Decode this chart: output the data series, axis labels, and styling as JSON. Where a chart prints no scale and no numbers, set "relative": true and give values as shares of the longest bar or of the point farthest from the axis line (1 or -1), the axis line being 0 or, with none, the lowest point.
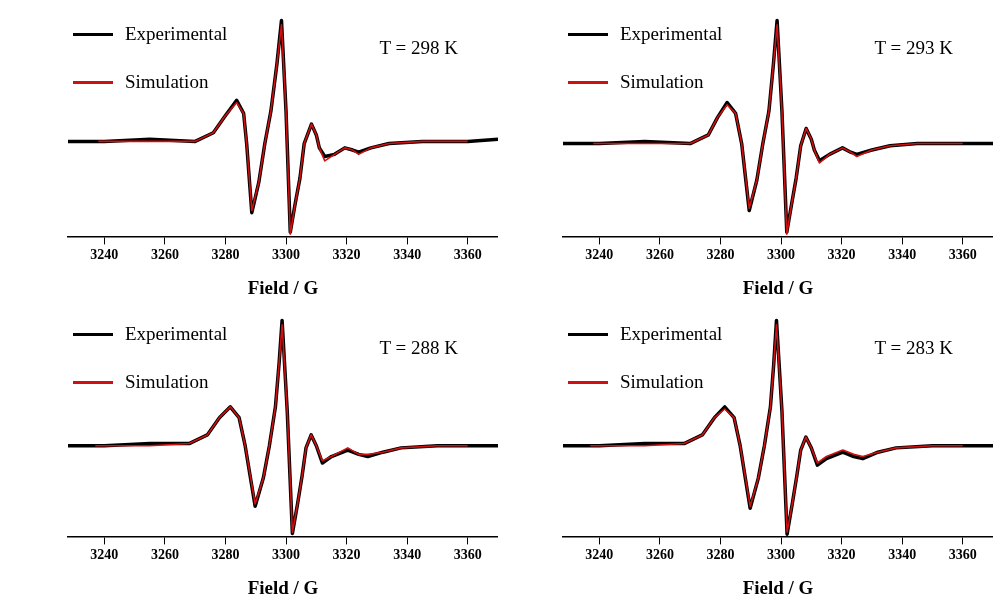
{
  "chart_data": [
    {
      "type": "line",
      "relative": true,
      "xlabel": "Field / G",
      "xlim": [
        3228,
        3370
      ],
      "xticks": [
        3240,
        3260,
        3280,
        3300,
        3320,
        3340,
        3360
      ],
      "legend": "top left",
      "grid": false,
      "annotations": [
        "T = 298 K"
      ],
      "series": [
        {
          "name": "Experimental",
          "color": "#000000",
          "x": [
            3228,
            3240,
            3255,
            3270,
            3276,
            3280,
            3283.7,
            3286,
            3287,
            3288.7,
            3291,
            3293,
            3295,
            3297,
            3298.5,
            3300,
            3301.4,
            3303,
            3304.6,
            3306,
            3308.4,
            3310,
            3311,
            3312.8,
            3316,
            3319.4,
            3322,
            3324,
            3328,
            3334,
            3345,
            3360,
            3370
          ],
          "values": [
            0.44,
            0.44,
            0.45,
            0.44,
            0.48,
            0.56,
            0.63,
            0.57,
            0.43,
            0.11,
            0.25,
            0.43,
            0.58,
            0.8,
            1.0,
            0.58,
            0.02,
            0.15,
            0.27,
            0.43,
            0.52,
            0.47,
            0.41,
            0.37,
            0.38,
            0.41,
            0.4,
            0.39,
            0.41,
            0.43,
            0.44,
            0.44,
            0.45
          ]
        },
        {
          "name": "Simulation",
          "color": "#d01010",
          "x": [
            3238,
            3255,
            3270,
            3276,
            3280,
            3283.7,
            3286,
            3287,
            3288.7,
            3291,
            3293,
            3295,
            3297,
            3298.5,
            3300,
            3301.4,
            3303,
            3304.6,
            3306,
            3308.4,
            3310,
            3311,
            3312.8,
            3316,
            3319.4,
            3322,
            3324,
            3328,
            3334,
            3345,
            3360
          ],
          "values": [
            0.44,
            0.44,
            0.44,
            0.48,
            0.56,
            0.62,
            0.57,
            0.43,
            0.12,
            0.25,
            0.43,
            0.58,
            0.8,
            0.98,
            0.58,
            0.01,
            0.15,
            0.27,
            0.43,
            0.52,
            0.47,
            0.41,
            0.35,
            0.38,
            0.41,
            0.4,
            0.38,
            0.41,
            0.43,
            0.44,
            0.44
          ]
        }
      ]
    },
    {
      "type": "line",
      "relative": true,
      "xlabel": "Field / G",
      "xlim": [
        3228,
        3370
      ],
      "xticks": [
        3240,
        3260,
        3280,
        3300,
        3320,
        3340,
        3360
      ],
      "legend": "top left",
      "grid": false,
      "annotations": [
        "T = 293 K"
      ],
      "series": [
        {
          "name": "Experimental",
          "color": "#000000",
          "x": [
            3228,
            3240,
            3255,
            3270,
            3276,
            3279,
            3282.2,
            3285,
            3287,
            3289.5,
            3292,
            3294,
            3296,
            3297.5,
            3298.7,
            3300.3,
            3301.9,
            3303.5,
            3305,
            3306.5,
            3308.3,
            3310,
            3311,
            3312.7,
            3316,
            3320.3,
            3323,
            3325,
            3330,
            3336,
            3345,
            3360,
            3370
          ],
          "values": [
            0.43,
            0.43,
            0.44,
            0.43,
            0.47,
            0.55,
            0.62,
            0.57,
            0.43,
            0.12,
            0.26,
            0.43,
            0.58,
            0.8,
            1.0,
            0.58,
            0.02,
            0.15,
            0.27,
            0.42,
            0.5,
            0.45,
            0.4,
            0.35,
            0.38,
            0.41,
            0.39,
            0.38,
            0.4,
            0.42,
            0.43,
            0.43,
            0.43
          ]
        },
        {
          "name": "Simulation",
          "color": "#d01010",
          "x": [
            3238,
            3255,
            3270,
            3276,
            3279,
            3282.2,
            3285,
            3287,
            3289.5,
            3292,
            3294,
            3296,
            3297.5,
            3298.7,
            3300.3,
            3301.9,
            3303.5,
            3305,
            3306.5,
            3308.3,
            3310,
            3311,
            3312.7,
            3316,
            3320.3,
            3323,
            3325,
            3330,
            3336,
            3345,
            3360
          ],
          "values": [
            0.43,
            0.43,
            0.43,
            0.47,
            0.55,
            0.61,
            0.57,
            0.43,
            0.13,
            0.26,
            0.43,
            0.58,
            0.8,
            0.98,
            0.58,
            0.01,
            0.15,
            0.27,
            0.42,
            0.5,
            0.45,
            0.4,
            0.34,
            0.38,
            0.41,
            0.39,
            0.37,
            0.4,
            0.42,
            0.43,
            0.43
          ]
        }
      ]
    },
    {
      "type": "line",
      "relative": true,
      "xlabel": "Field / G",
      "xlim": [
        3228,
        3370
      ],
      "xticks": [
        3240,
        3260,
        3280,
        3300,
        3320,
        3340,
        3360
      ],
      "legend": "top left",
      "grid": false,
      "annotations": [
        "T = 288 K"
      ],
      "series": [
        {
          "name": "Experimental",
          "color": "#000000",
          "x": [
            3228,
            3240,
            3255,
            3268,
            3274,
            3278,
            3281.6,
            3284.5,
            3286.5,
            3289.8,
            3292.5,
            3294.5,
            3296.5,
            3297.7,
            3298.7,
            3300.4,
            3302.1,
            3303.8,
            3305.3,
            3306.6,
            3308.3,
            3310,
            3312,
            3315,
            3320.4,
            3324,
            3327,
            3332,
            3338,
            3350,
            3360,
            3370
          ],
          "values": [
            0.42,
            0.42,
            0.43,
            0.43,
            0.47,
            0.55,
            0.6,
            0.55,
            0.42,
            0.14,
            0.27,
            0.42,
            0.6,
            0.8,
            1.0,
            0.58,
            0.014,
            0.15,
            0.28,
            0.41,
            0.47,
            0.42,
            0.34,
            0.37,
            0.4,
            0.38,
            0.37,
            0.39,
            0.41,
            0.42,
            0.42,
            0.42
          ]
        },
        {
          "name": "Simulation",
          "color": "#d01010",
          "x": [
            3237,
            3255,
            3268,
            3274,
            3278,
            3281.6,
            3284.5,
            3286.5,
            3289.8,
            3292.5,
            3294.5,
            3296.5,
            3297.7,
            3298.7,
            3300.4,
            3302.1,
            3303.8,
            3305.3,
            3306.6,
            3308.3,
            3310,
            3312,
            3315,
            3320.4,
            3324,
            3327,
            3332,
            3338,
            3350,
            3360
          ],
          "values": [
            0.42,
            0.42,
            0.43,
            0.47,
            0.55,
            0.6,
            0.55,
            0.42,
            0.15,
            0.27,
            0.42,
            0.6,
            0.8,
            0.98,
            0.58,
            0.02,
            0.15,
            0.28,
            0.41,
            0.47,
            0.42,
            0.35,
            0.37,
            0.41,
            0.38,
            0.38,
            0.39,
            0.41,
            0.42,
            0.42
          ]
        }
      ]
    },
    {
      "type": "line",
      "relative": true,
      "xlabel": "Field / G",
      "xlim": [
        3228,
        3370
      ],
      "xticks": [
        3240,
        3260,
        3280,
        3300,
        3320,
        3340,
        3360
      ],
      "legend": "top left",
      "grid": false,
      "annotations": [
        "T = 283 K"
      ],
      "series": [
        {
          "name": "Experimental",
          "color": "#000000",
          "x": [
            3228,
            3240,
            3255,
            3268,
            3274,
            3278,
            3281.4,
            3284.5,
            3286.5,
            3289.8,
            3292.5,
            3294.5,
            3296.5,
            3297.6,
            3298.5,
            3300.3,
            3302,
            3303.7,
            3305.2,
            3306.5,
            3308.2,
            3310,
            3312,
            3315,
            3320.4,
            3324,
            3327,
            3332,
            3338,
            3350,
            3360,
            3370
          ],
          "values": [
            0.42,
            0.42,
            0.43,
            0.43,
            0.47,
            0.55,
            0.6,
            0.55,
            0.42,
            0.13,
            0.27,
            0.42,
            0.6,
            0.8,
            1.0,
            0.58,
            0.01,
            0.15,
            0.28,
            0.4,
            0.46,
            0.41,
            0.33,
            0.36,
            0.39,
            0.37,
            0.36,
            0.39,
            0.41,
            0.42,
            0.42,
            0.42
          ]
        },
        {
          "name": "Simulation",
          "color": "#d01010",
          "x": [
            3237,
            3255,
            3268,
            3274,
            3278,
            3281.4,
            3284.5,
            3286.5,
            3289.8,
            3292.5,
            3294.5,
            3296.5,
            3297.6,
            3298.5,
            3300.3,
            3302,
            3303.7,
            3305.2,
            3306.5,
            3308.2,
            3310,
            3312,
            3315,
            3320.4,
            3324,
            3327,
            3332,
            3338,
            3350,
            3360
          ],
          "values": [
            0.42,
            0.42,
            0.43,
            0.47,
            0.55,
            0.59,
            0.55,
            0.42,
            0.14,
            0.27,
            0.42,
            0.6,
            0.8,
            0.98,
            0.58,
            0.02,
            0.15,
            0.28,
            0.4,
            0.46,
            0.41,
            0.34,
            0.37,
            0.4,
            0.38,
            0.37,
            0.39,
            0.41,
            0.42,
            0.42
          ]
        }
      ]
    }
  ]
}
